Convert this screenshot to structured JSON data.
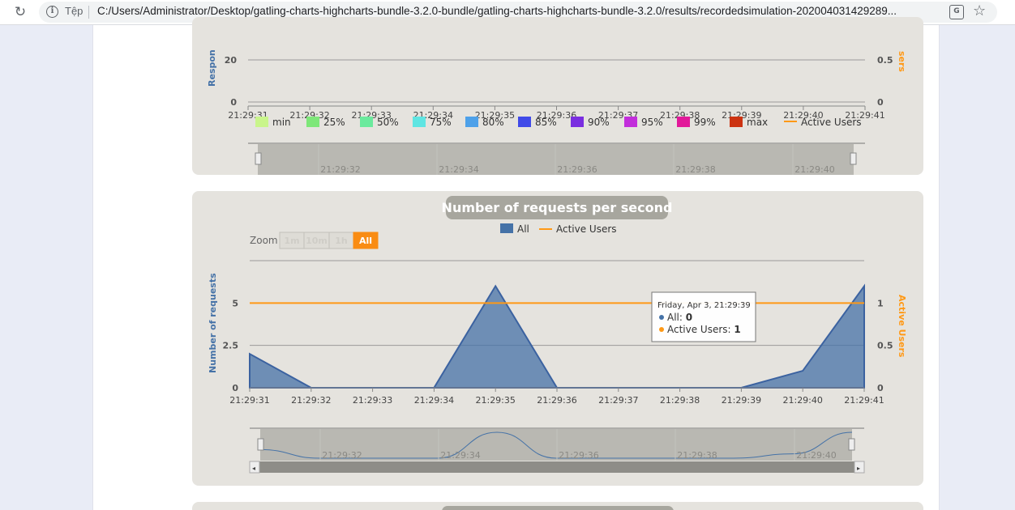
{
  "browser": {
    "scheme_label": "Tệp",
    "url": "C:/Users/Administrator/Desktop/gatling-charts-highcharts-bundle-3.2.0-bundle/gatling-charts-highcharts-bundle-3.2.0/results/recordedsimulation-202004031429289..."
  },
  "chart_top": {
    "y_axis_label": "Respon",
    "y2_axis_label": "sers",
    "y_ticks": [
      "20",
      "0"
    ],
    "y2_ticks": [
      "0.5",
      "0"
    ],
    "x_ticks": [
      "21:29:31",
      "21:29:32",
      "21:29:33",
      "21:29:34",
      "21:29:35",
      "21:29:36",
      "21:29:37",
      "21:29:38",
      "21:29:39",
      "21:29:40",
      "21:29:41"
    ],
    "legend": [
      {
        "label": "min",
        "color": "#c9f58b"
      },
      {
        "label": "25%",
        "color": "#7ee779"
      },
      {
        "label": "50%",
        "color": "#6bea9d"
      },
      {
        "label": "75%",
        "color": "#5fe5e2"
      },
      {
        "label": "80%",
        "color": "#4ea1e9"
      },
      {
        "label": "85%",
        "color": "#404ae8"
      },
      {
        "label": "90%",
        "color": "#7a2ee0"
      },
      {
        "label": "95%",
        "color": "#c22edb"
      },
      {
        "label": "99%",
        "color": "#e2199a"
      },
      {
        "label": "max",
        "color": "#cc3311"
      },
      {
        "label": "Active Users",
        "color": "#ff9916"
      }
    ],
    "navigator_ticks": [
      "21:29:32",
      "21:29:34",
      "21:29:36",
      "21:29:38",
      "21:29:40"
    ]
  },
  "chart_data": {
    "type": "area",
    "title": "Number of requests per second",
    "ylabel": "Number of requests",
    "y2label": "Active Users",
    "x": [
      "21:29:31",
      "21:29:32",
      "21:29:33",
      "21:29:34",
      "21:29:35",
      "21:29:36",
      "21:29:37",
      "21:29:38",
      "21:29:39",
      "21:29:40",
      "21:29:41"
    ],
    "series": [
      {
        "name": "All",
        "type": "area",
        "color": "#4572a7",
        "values": [
          2,
          0,
          0,
          0,
          6,
          0,
          0,
          0,
          0,
          1,
          6
        ]
      },
      {
        "name": "Active Users",
        "type": "line",
        "color": "#ff9916",
        "axis": "right",
        "values": [
          1,
          1,
          1,
          1,
          1,
          1,
          1,
          1,
          1,
          1,
          1
        ]
      }
    ],
    "ylim": [
      0,
      7.5
    ],
    "y_ticks": [
      "0",
      "2.5",
      "5"
    ],
    "y2lim": [
      0,
      1.5
    ],
    "y2_ticks": [
      "0",
      "0.5",
      "1"
    ],
    "legend_position": "top-center",
    "grid": true,
    "navigator_ticks": [
      "21:29:32",
      "21:29:34",
      "21:29:36",
      "21:29:38",
      "21:29:40"
    ]
  },
  "zoom": {
    "label": "Zoom",
    "buttons": [
      "1m",
      "10m",
      "1h",
      "All"
    ],
    "active": "All"
  },
  "tooltip": {
    "header": "Friday, Apr 3, 21:29:39",
    "all_label": "All: ",
    "all_value": "0",
    "users_label": "Active Users: ",
    "users_value": "1",
    "all_color": "#4572a7",
    "users_color": "#ff9916"
  }
}
